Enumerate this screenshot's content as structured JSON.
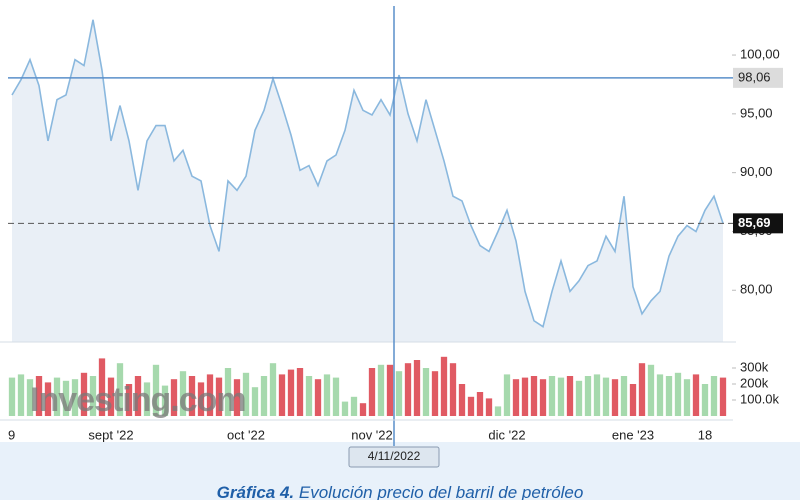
{
  "chart_data": [
    {
      "type": "line",
      "categories": [
        "9",
        null,
        null,
        null,
        null,
        null,
        null,
        null,
        null,
        null,
        null,
        "sept '22",
        null,
        null,
        null,
        null,
        null,
        null,
        null,
        null,
        null,
        null,
        null,
        null,
        null,
        null,
        "oct '22",
        null,
        null,
        null,
        null,
        null,
        null,
        null,
        null,
        null,
        null,
        null,
        null,
        null,
        "nov '22",
        null,
        null,
        null,
        null,
        null,
        null,
        null,
        null,
        null,
        null,
        null,
        null,
        null,
        null,
        "dic '22",
        null,
        null,
        null,
        null,
        null,
        null,
        null,
        null,
        null,
        null,
        null,
        null,
        null,
        "ene '23",
        null,
        null,
        null,
        null,
        null,
        null,
        null,
        "18",
        null,
        null
      ],
      "series": [
        {
          "name": "Petróleo",
          "color": "#8ab8de",
          "values": [
            96.6,
            97.9,
            99.6,
            97.4,
            92.7,
            96.2,
            96.6,
            99.6,
            99.1,
            103.0,
            98.7,
            92.7,
            95.7,
            92.7,
            88.5,
            92.7,
            94.0,
            94.0,
            91.0,
            91.9,
            89.7,
            89.3,
            85.5,
            83.3,
            89.3,
            88.5,
            89.7,
            93.6,
            95.3,
            98.0,
            95.7,
            93.2,
            90.2,
            90.6,
            88.9,
            91.0,
            91.5,
            93.6,
            97.0,
            95.3,
            94.9,
            96.2,
            94.9,
            98.3,
            95.0,
            92.7,
            96.2,
            93.6,
            91.0,
            88.0,
            87.6,
            85.5,
            83.8,
            83.3,
            85.0,
            86.8,
            84.2,
            79.9,
            77.4,
            76.9,
            79.9,
            82.5,
            79.9,
            80.8,
            82.1,
            82.5,
            84.6,
            83.3,
            88.0,
            80.3,
            78.0,
            79.1,
            79.9,
            82.9,
            84.6,
            85.5,
            85.0,
            86.8,
            88.0,
            85.69
          ]
        }
      ],
      "ylim": [
        75.6,
        104
      ],
      "yticks": [
        {
          "value": 80,
          "label": "80,00"
        },
        {
          "value": 85,
          "label": "85,00"
        },
        {
          "value": 90,
          "label": "90,00"
        },
        {
          "value": 95,
          "label": "95,00"
        },
        {
          "value": 100,
          "label": "100,00"
        }
      ],
      "crosshair": {
        "value": 98.06,
        "label": "98,06",
        "date": "4/11/2022"
      },
      "last_price": {
        "value": 85.69,
        "label": "85,69"
      }
    },
    {
      "type": "bar",
      "up_color": "#a6d9ad",
      "down_color": "#e05a63",
      "values": [
        240000,
        260000,
        230000,
        250000,
        210000,
        240000,
        220000,
        230000,
        270000,
        250000,
        360000,
        240000,
        330000,
        200000,
        250000,
        210000,
        320000,
        190000,
        230000,
        280000,
        250000,
        210000,
        260000,
        240000,
        300000,
        230000,
        270000,
        180000,
        250000,
        330000,
        260000,
        290000,
        300000,
        250000,
        230000,
        260000,
        240000,
        90000,
        120000,
        80000,
        300000,
        320000,
        320000,
        280000,
        330000,
        350000,
        300000,
        280000,
        370000,
        330000,
        200000,
        120000,
        150000,
        110000,
        60000,
        260000,
        230000,
        240000,
        250000,
        230000,
        250000,
        240000,
        250000,
        220000,
        250000,
        260000,
        240000,
        230000,
        250000,
        200000,
        330000,
        320000,
        260000,
        250000,
        270000,
        230000,
        260000,
        200000,
        250000,
        240000
      ],
      "ylim": [
        0,
        450000
      ],
      "yticks": [
        {
          "value": 100000,
          "label": "100.0k"
        },
        {
          "value": 200000,
          "label": "200k"
        },
        {
          "value": 300000,
          "label": "300k"
        }
      ]
    }
  ],
  "watermark": "Investing.com",
  "caption": {
    "label": "Gráfica 4.",
    "text": "Evolución precio del barril de petróleo"
  }
}
